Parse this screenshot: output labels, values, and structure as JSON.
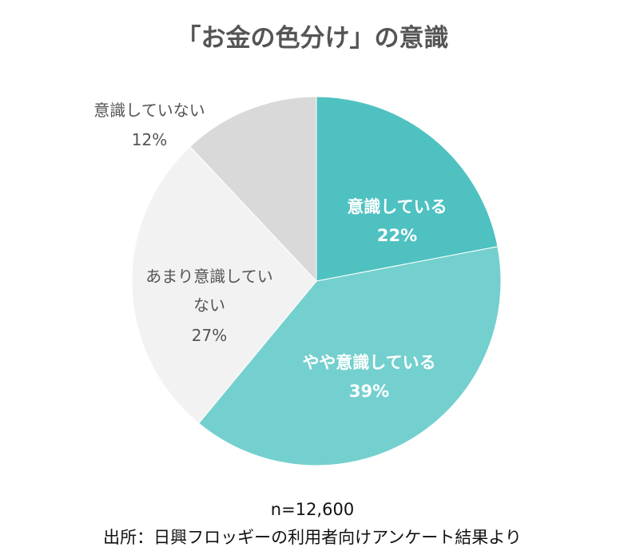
{
  "chart_data": {
    "type": "pie",
    "title": "「お金の色分け」の意識",
    "slices": [
      {
        "label": "意識している",
        "value": 22,
        "display": "22%",
        "color": "#4fc1c1"
      },
      {
        "label": "やや意識している",
        "value": 39,
        "display": "39%",
        "color": "#74d0ce"
      },
      {
        "label_lines": [
          "あまり意識してい",
          "ない"
        ],
        "value": 27,
        "display": "27%",
        "color": "#f2f2f2"
      },
      {
        "label": "意識していない",
        "value": 12,
        "display": "12%",
        "color": "#d9d9d9"
      }
    ],
    "start": "12 o'clock",
    "direction": "clockwise"
  },
  "footer": {
    "sample_size": "n=12,600",
    "source": "出所：日興フロッギーの利用者向けアンケート結果より"
  }
}
